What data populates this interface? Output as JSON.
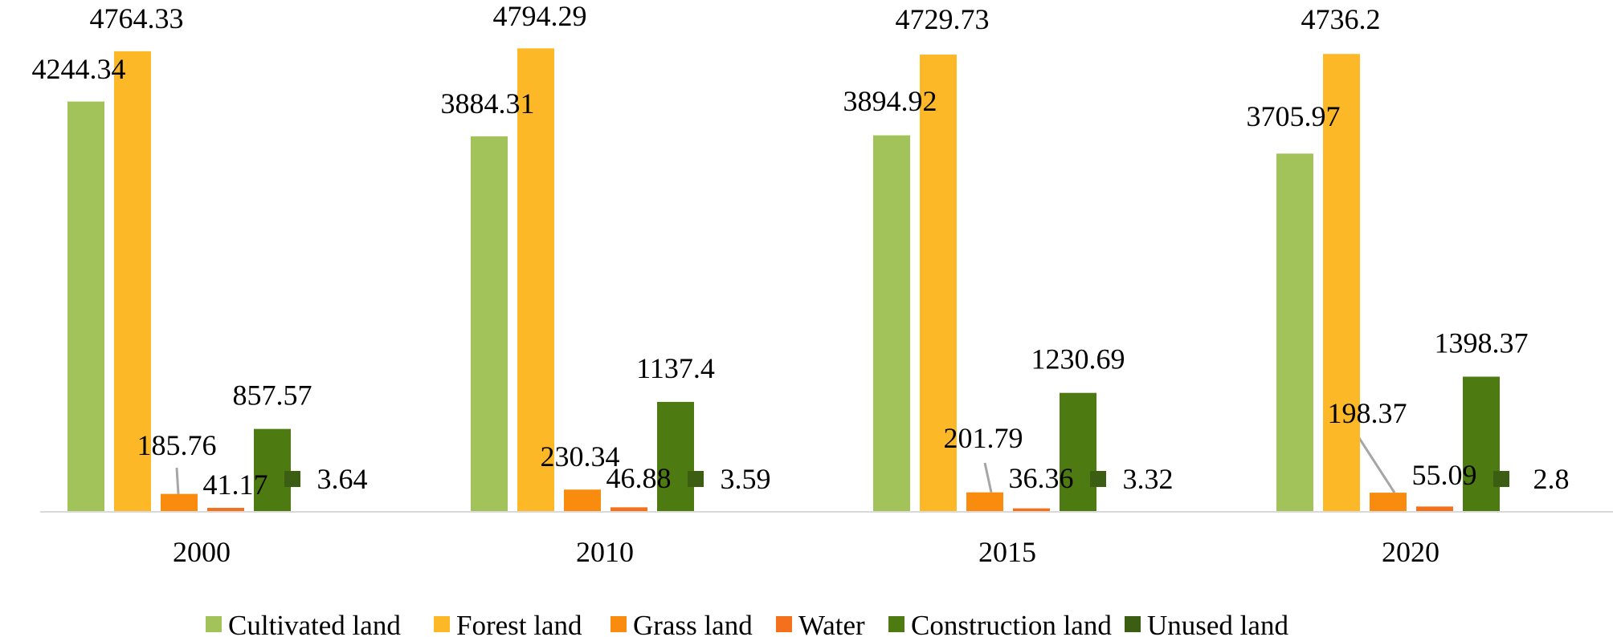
{
  "chart_data": {
    "type": "bar",
    "title": "",
    "xlabel": "",
    "ylabel": "",
    "ylim": [
      0,
      5000
    ],
    "grid": false,
    "legend_position": "bottom",
    "categories": [
      "2000",
      "2010",
      "2015",
      "2020"
    ],
    "series": [
      {
        "name": "Cultivated land",
        "color": "#A2C35A",
        "values": [
          4244.34,
          3884.31,
          3894.92,
          3705.97
        ],
        "labels": [
          "4244.34",
          "3884.31",
          "3894.92",
          "3705.97"
        ]
      },
      {
        "name": "Forest land",
        "color": "#FDB827",
        "values": [
          4764.33,
          4794.29,
          4729.73,
          4736.2
        ],
        "labels": [
          "4764.33",
          "4794.29",
          "4729.73",
          "4736.2"
        ]
      },
      {
        "name": "Grass land",
        "color": "#F98C0F",
        "values": [
          185.76,
          230.34,
          201.79,
          198.37
        ],
        "labels": [
          "185.76",
          "230.34",
          "201.79",
          "198.37"
        ]
      },
      {
        "name": "Water",
        "color": "#F5701B",
        "values": [
          41.17,
          46.88,
          36.36,
          55.09
        ],
        "labels": [
          "41.17",
          "46.88",
          "36.36",
          "55.09"
        ]
      },
      {
        "name": "Construction land",
        "color": "#4E7A12",
        "values": [
          857.57,
          1137.4,
          1230.69,
          1398.37
        ],
        "labels": [
          "857.57",
          "1137.4",
          "1230.69",
          "1398.37"
        ]
      },
      {
        "name": "Unused land",
        "color": "#3B5E12",
        "values": [
          3.64,
          3.59,
          3.32,
          2.8
        ],
        "labels": [
          "3.64",
          "3.59",
          "3.32",
          "2.8"
        ]
      }
    ]
  }
}
